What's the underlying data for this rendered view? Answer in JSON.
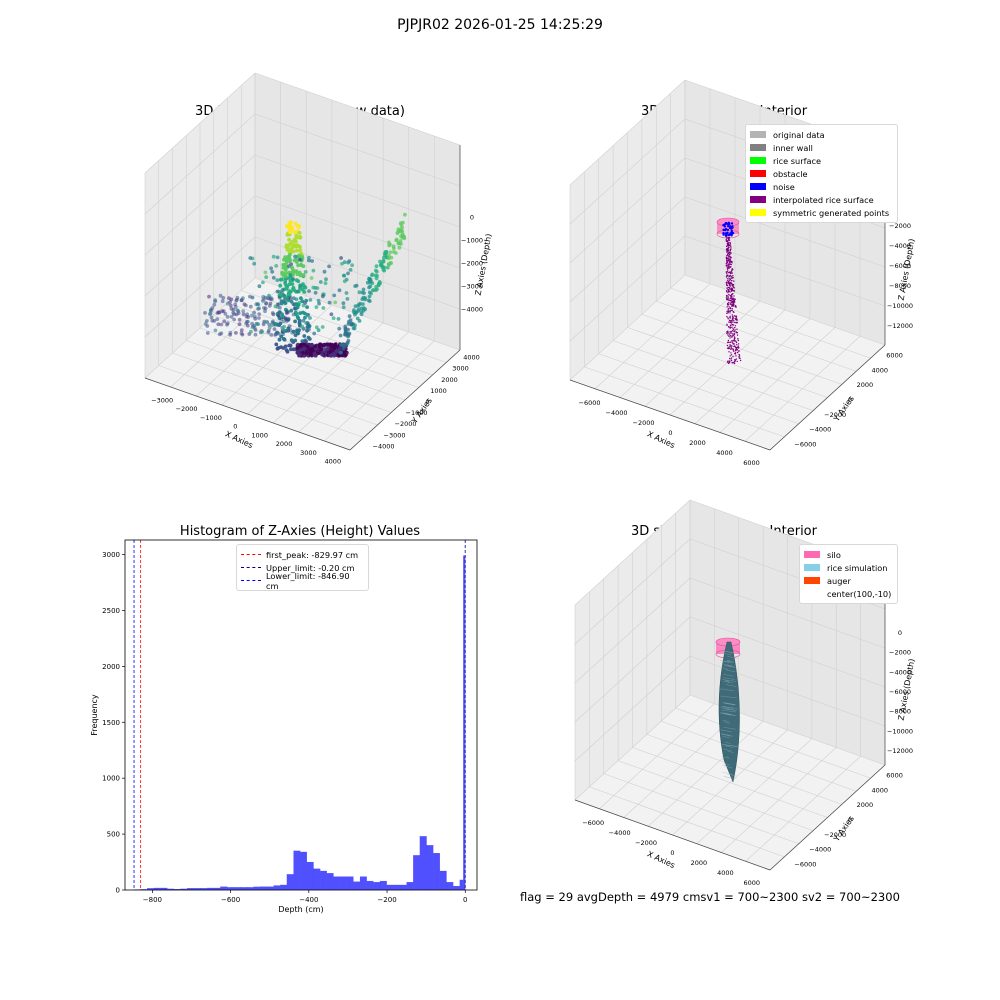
{
  "suptitle": "PJPJR02 2026-01-25 14:25:29",
  "footer": {
    "text": "flag = 29   avgDepth = 4979 cmsv1 = 700~2300  sv2 = 700~2300"
  },
  "panels": {
    "p1": {
      "title": "3D Plot of Silo Interior(row data)"
    },
    "p2": {
      "title": "3D classify of Silo Interior"
    },
    "p3": {
      "title": "Histogram of Z-Axies (Height) Values"
    },
    "p4": {
      "title": "3D simulation of Silo Interior"
    }
  },
  "chart_data": [
    {
      "type": "scatter",
      "projection": "3d",
      "title": "3D Plot of Silo Interior(row data)",
      "xlabel": "X Axies",
      "ylabel": "Y Axies",
      "zlabel": "Z Axies (Depth)",
      "xticks": [
        "−3000",
        "−2000",
        "−1000",
        "0",
        "1000",
        "2000",
        "3000",
        "4000"
      ],
      "yticks": [
        "−4000",
        "−3000",
        "−2000",
        "−1000",
        "0",
        "1000",
        "2000",
        "3000",
        "4000"
      ],
      "zticks": [
        "0",
        "−1000",
        "−2000",
        "−3000",
        "−4000"
      ],
      "colormap": "viridis",
      "grid": true
    },
    {
      "type": "scatter",
      "projection": "3d",
      "title": "3D classify of Silo Interior",
      "xlabel": "X Axies",
      "ylabel": "Y Axies",
      "zlabel": "Z Axies (Depth)",
      "xticks": [
        "−6000",
        "−4000",
        "−2000",
        "0",
        "2000",
        "4000",
        "6000"
      ],
      "yticks": [
        "−6000",
        "−4000",
        "−2000",
        "0",
        "2000",
        "4000",
        "6000"
      ],
      "zticks": [
        "−2000",
        "−4000",
        "−6000",
        "−8000",
        "−10000",
        "−12000"
      ],
      "legend_position": "top-right",
      "legend": [
        {
          "label": "original data",
          "color": "#b3b3b3"
        },
        {
          "label": "inner wall",
          "color": "#808080"
        },
        {
          "label": "rice surface",
          "color": "#00ff00"
        },
        {
          "label": "obstacle",
          "color": "#ff0000"
        },
        {
          "label": "noise",
          "color": "#0000ff"
        },
        {
          "label": "interpolated rice surface",
          "color": "#800080"
        },
        {
          "label": "symmetric generated points",
          "color": "#ffff00"
        }
      ],
      "grid": true
    },
    {
      "type": "bar",
      "title": "Histogram of Z-Axies (Height) Values",
      "xlabel": "Depth (cm)",
      "ylabel": "Frequency",
      "xlim": [
        -870,
        30
      ],
      "ylim": [
        0,
        3130
      ],
      "xticks": [
        -800,
        -600,
        -400,
        -200,
        0
      ],
      "xtick_labels": [
        "−800",
        "−600",
        "−400",
        "−200",
        "0"
      ],
      "yticks": [
        0,
        500,
        1000,
        1500,
        2000,
        2500,
        3000
      ],
      "bar_color": "#5050ff",
      "bins": [
        {
          "x0": -870,
          "x1": -847,
          "count": 0
        },
        {
          "x0": -847,
          "x1": -830,
          "count": 4
        },
        {
          "x0": -830,
          "x1": -813,
          "count": 6
        },
        {
          "x0": -813,
          "x1": -796,
          "count": 15
        },
        {
          "x0": -796,
          "x1": -779,
          "count": 18
        },
        {
          "x0": -779,
          "x1": -762,
          "count": 18
        },
        {
          "x0": -762,
          "x1": -745,
          "count": 10
        },
        {
          "x0": -745,
          "x1": -728,
          "count": 8
        },
        {
          "x0": -728,
          "x1": -711,
          "count": 10
        },
        {
          "x0": -711,
          "x1": -694,
          "count": 16
        },
        {
          "x0": -694,
          "x1": -677,
          "count": 16
        },
        {
          "x0": -677,
          "x1": -660,
          "count": 16
        },
        {
          "x0": -660,
          "x1": -643,
          "count": 18
        },
        {
          "x0": -643,
          "x1": -626,
          "count": 18
        },
        {
          "x0": -626,
          "x1": -609,
          "count": 30
        },
        {
          "x0": -609,
          "x1": -592,
          "count": 24
        },
        {
          "x0": -592,
          "x1": -575,
          "count": 24
        },
        {
          "x0": -575,
          "x1": -558,
          "count": 24
        },
        {
          "x0": -558,
          "x1": -541,
          "count": 24
        },
        {
          "x0": -541,
          "x1": -524,
          "count": 28
        },
        {
          "x0": -524,
          "x1": -507,
          "count": 30
        },
        {
          "x0": -507,
          "x1": -490,
          "count": 30
        },
        {
          "x0": -490,
          "x1": -473,
          "count": 40
        },
        {
          "x0": -473,
          "x1": -456,
          "count": 45
        },
        {
          "x0": -456,
          "x1": -439,
          "count": 140
        },
        {
          "x0": -439,
          "x1": -422,
          "count": 350
        },
        {
          "x0": -422,
          "x1": -405,
          "count": 340
        },
        {
          "x0": -405,
          "x1": -388,
          "count": 250
        },
        {
          "x0": -388,
          "x1": -371,
          "count": 190
        },
        {
          "x0": -371,
          "x1": -354,
          "count": 170
        },
        {
          "x0": -354,
          "x1": -337,
          "count": 150
        },
        {
          "x0": -337,
          "x1": -320,
          "count": 120
        },
        {
          "x0": -320,
          "x1": -303,
          "count": 120
        },
        {
          "x0": -303,
          "x1": -286,
          "count": 120
        },
        {
          "x0": -286,
          "x1": -269,
          "count": 75
        },
        {
          "x0": -269,
          "x1": -252,
          "count": 120
        },
        {
          "x0": -252,
          "x1": -235,
          "count": 80
        },
        {
          "x0": -235,
          "x1": -218,
          "count": 70
        },
        {
          "x0": -218,
          "x1": -201,
          "count": 80
        },
        {
          "x0": -201,
          "x1": -184,
          "count": 45
        },
        {
          "x0": -184,
          "x1": -167,
          "count": 45
        },
        {
          "x0": -167,
          "x1": -150,
          "count": 45
        },
        {
          "x0": -150,
          "x1": -133,
          "count": 70
        },
        {
          "x0": -133,
          "x1": -116,
          "count": 310
        },
        {
          "x0": -116,
          "x1": -99,
          "count": 480
        },
        {
          "x0": -99,
          "x1": -82,
          "count": 400
        },
        {
          "x0": -82,
          "x1": -65,
          "count": 330
        },
        {
          "x0": -65,
          "x1": -48,
          "count": 170
        },
        {
          "x0": -48,
          "x1": -31,
          "count": 70
        },
        {
          "x0": -31,
          "x1": -14,
          "count": 35
        },
        {
          "x0": -14,
          "x1": -5,
          "count": 90
        },
        {
          "x0": -5,
          "x1": 0,
          "count": 2990
        }
      ],
      "lines": [
        {
          "label": "first_peak: -829.97 cm",
          "x": -829.97,
          "color": "#ff0000"
        },
        {
          "label": "Upper_limit: -0.20 cm",
          "x": -0.2,
          "color": "#000080"
        },
        {
          "label": "Lower_limit: -846.90 cm",
          "x": -846.9,
          "color": "#0000ff"
        }
      ],
      "legend_position": "top-center"
    },
    {
      "type": "surface",
      "projection": "3d",
      "title": "3D simulation of Silo Interior",
      "xlabel": "X Axies",
      "ylabel": "Y Axies",
      "zlabel": "Z Axies (Depth)",
      "xticks": [
        "−6000",
        "−4000",
        "−2000",
        "0",
        "2000",
        "4000",
        "6000"
      ],
      "yticks": [
        "−6000",
        "−4000",
        "−2000",
        "0",
        "2000",
        "4000",
        "6000"
      ],
      "zticks": [
        "0",
        "−2000",
        "−4000",
        "−6000",
        "−8000",
        "−10000",
        "−12000"
      ],
      "legend_position": "top-right",
      "legend": [
        {
          "label": "silo",
          "color": "#ff69b4"
        },
        {
          "label": "rice simulation",
          "color": "#87ceeb"
        },
        {
          "label": "auger",
          "color": "#ff4500"
        },
        {
          "label": "center(100,-10)",
          "color": ""
        }
      ],
      "grid": true
    }
  ]
}
